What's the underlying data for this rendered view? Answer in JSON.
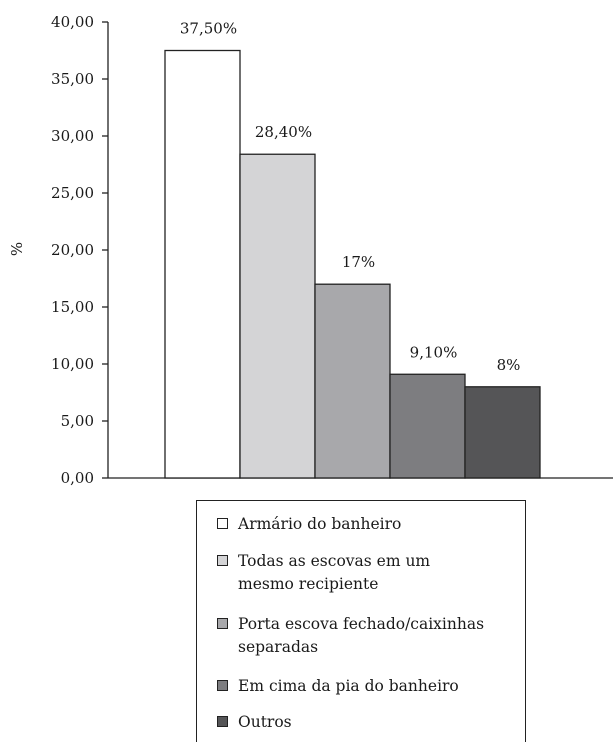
{
  "chart_data": {
    "type": "bar",
    "title": "",
    "xlabel": "",
    "ylabel": "%",
    "ylim": [
      0,
      40
    ],
    "yticks": [
      0,
      5,
      10,
      15,
      20,
      25,
      30,
      35,
      40
    ],
    "ytick_labels": [
      "0,00",
      "5,00",
      "10,00",
      "15,00",
      "20,00",
      "25,00",
      "30,00",
      "35,00",
      "40,00"
    ],
    "grid": false,
    "legend_position": "bottom",
    "series": [
      {
        "name": "Armário do banheiro",
        "value": 37.5,
        "label": "37,50%",
        "color": "#ffffff"
      },
      {
        "name": "Todas as escovas em um mesmo recipiente",
        "value": 28.4,
        "label": "28,40%",
        "color": "#d4d4d6"
      },
      {
        "name": "Porta escova fechado/caixinhas separadas",
        "value": 17,
        "label": "17%",
        "color": "#a8a8ab"
      },
      {
        "name": "Em cima da pia do banheiro",
        "value": 9.1,
        "label": "9,10%",
        "color": "#7d7d80"
      },
      {
        "name": "Outros",
        "value": 8,
        "label": "8%",
        "color": "#555557"
      }
    ]
  },
  "legend": {
    "items": [
      {
        "text": "Armário do banheiro",
        "color": "#ffffff"
      },
      {
        "text": "Todas as escovas em um\nmesmo recipiente",
        "color": "#d4d4d6"
      },
      {
        "text": "Porta escova fechado/caixinhas\nseparadas",
        "color": "#a8a8ab"
      },
      {
        "text": "Em cima da pia do banheiro",
        "color": "#7d7d80"
      },
      {
        "text": "Outros",
        "color": "#555557"
      }
    ]
  }
}
